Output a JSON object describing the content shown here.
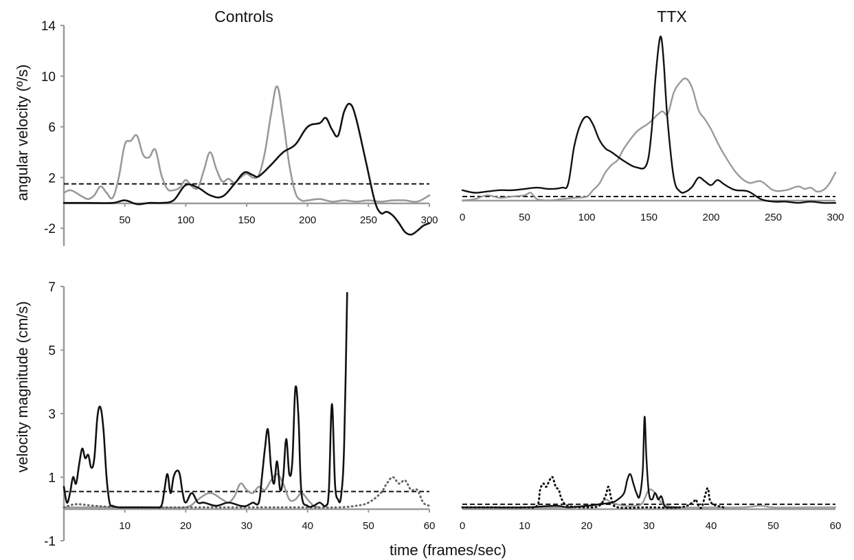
{
  "figure": {
    "titles": {
      "left": "Controls",
      "right": "TTX"
    },
    "ylabel_top": "angular velocity (º/s)",
    "ylabel_bottom": "velocity magnitude (cm/s)",
    "xlabel": "time (frames/sec)"
  },
  "colors": {
    "black": "#111111",
    "gray": "#999999",
    "dotted": "#666666",
    "axis": "#9a9a9a",
    "threshold": "#111111"
  },
  "chart_data": [
    {
      "panel": "top-left",
      "type": "line",
      "title": "Controls",
      "ylabel": "angular velocity (º/s)",
      "xlim": [
        0,
        300
      ],
      "ylim": [
        -3.4,
        14
      ],
      "xticks": [
        50,
        100,
        150,
        200,
        250,
        300
      ],
      "yticks": [
        -2,
        2,
        6,
        10,
        14
      ],
      "threshold": 1.5,
      "series": [
        {
          "color": "black",
          "style": "solid",
          "x": [
            0,
            20,
            40,
            50,
            60,
            70,
            80,
            90,
            100,
            110,
            120,
            130,
            140,
            148,
            155,
            160,
            170,
            180,
            190,
            200,
            210,
            215,
            220,
            225,
            230,
            235,
            240,
            248,
            255,
            260,
            265,
            270,
            275,
            280,
            285,
            290,
            295,
            300
          ],
          "y": [
            0,
            0,
            0,
            0.2,
            -0.1,
            0,
            0,
            0.2,
            1.4,
            1.2,
            0.6,
            0.5,
            1.5,
            2.4,
            2.2,
            2.1,
            3.0,
            4.0,
            4.6,
            6.0,
            6.3,
            6.7,
            5.8,
            5.3,
            7.2,
            7.8,
            6.6,
            3.2,
            0.2,
            -0.8,
            -0.7,
            -1.0,
            -1.6,
            -2.3,
            -2.5,
            -2.2,
            -1.8,
            -1.6
          ]
        },
        {
          "color": "gray",
          "style": "solid",
          "x": [
            0,
            5,
            10,
            15,
            20,
            25,
            30,
            35,
            40,
            45,
            50,
            55,
            60,
            65,
            70,
            75,
            80,
            85,
            90,
            95,
            100,
            105,
            110,
            115,
            120,
            125,
            130,
            135,
            140,
            145,
            150,
            155,
            160,
            165,
            170,
            175,
            180,
            185,
            190,
            195,
            200,
            210,
            220,
            230,
            240,
            250,
            260,
            270,
            280,
            290,
            300
          ],
          "y": [
            0.8,
            1.0,
            0.8,
            0.5,
            0.3,
            0.6,
            1.3,
            0.8,
            0.4,
            2.0,
            4.6,
            4.9,
            5.3,
            3.8,
            3.6,
            4.2,
            2.2,
            1.1,
            1.0,
            1.2,
            1.8,
            1.3,
            1.2,
            2.6,
            4.0,
            2.7,
            1.7,
            1.9,
            1.6,
            2.0,
            2.3,
            2.0,
            2.2,
            4.0,
            7.0,
            9.2,
            6.5,
            3.0,
            0.8,
            0.2,
            0.2,
            0.3,
            0.1,
            0.2,
            0.1,
            0.2,
            0.1,
            0.2,
            0.2,
            0.1,
            0.6
          ]
        }
      ]
    },
    {
      "panel": "top-right",
      "type": "line",
      "title": "TTX",
      "xlim": [
        0,
        300
      ],
      "ylim": [
        -3.4,
        14
      ],
      "xticks": [
        0,
        50,
        100,
        150,
        200,
        250,
        300
      ],
      "threshold": 0.5,
      "series": [
        {
          "color": "black",
          "style": "solid",
          "x": [
            0,
            10,
            20,
            30,
            40,
            50,
            60,
            70,
            80,
            85,
            90,
            95,
            100,
            105,
            110,
            115,
            120,
            130,
            140,
            148,
            152,
            155,
            158,
            160,
            162,
            165,
            170,
            175,
            180,
            185,
            190,
            195,
            200,
            205,
            210,
            215,
            220,
            230,
            240,
            250,
            260,
            270,
            280,
            290,
            300
          ],
          "y": [
            1.0,
            0.8,
            0.9,
            1.0,
            1.0,
            1.1,
            1.2,
            1.1,
            1.2,
            1.5,
            4.5,
            6.2,
            6.8,
            6.2,
            5.0,
            4.3,
            4.0,
            3.3,
            2.8,
            3.0,
            5.5,
            9.5,
            12.5,
            13.0,
            11.0,
            6.5,
            2.0,
            0.9,
            0.9,
            1.3,
            2.0,
            1.7,
            1.4,
            1.8,
            1.5,
            1.2,
            1.0,
            0.9,
            0.3,
            0.1,
            0.1,
            0.0,
            0.1,
            0.0,
            0.0
          ]
        },
        {
          "color": "gray",
          "style": "solid",
          "x": [
            0,
            10,
            20,
            30,
            40,
            50,
            55,
            60,
            70,
            80,
            90,
            100,
            105,
            110,
            115,
            120,
            125,
            130,
            140,
            150,
            160,
            165,
            170,
            175,
            180,
            185,
            190,
            195,
            200,
            205,
            210,
            220,
            230,
            240,
            250,
            260,
            270,
            275,
            280,
            285,
            290,
            295,
            300
          ],
          "y": [
            0.2,
            0.3,
            0.6,
            0.4,
            0.5,
            0.6,
            0.8,
            0.3,
            0.2,
            0.3,
            0.4,
            0.5,
            1.0,
            1.5,
            2.4,
            3.0,
            3.4,
            4.3,
            5.6,
            6.3,
            7.2,
            7.0,
            8.7,
            9.5,
            9.8,
            9.0,
            7.3,
            6.6,
            5.8,
            4.8,
            3.9,
            2.4,
            1.6,
            1.7,
            1.0,
            1.0,
            1.3,
            1.1,
            1.2,
            0.9,
            1.0,
            1.5,
            2.4
          ]
        }
      ]
    },
    {
      "panel": "bottom-left",
      "type": "line",
      "ylabel": "velocity magnitude (cm/s)",
      "xlim": [
        0,
        60
      ],
      "ylim": [
        -1,
        7
      ],
      "xticks": [
        10,
        20,
        30,
        40,
        50,
        60
      ],
      "yticks": [
        -1,
        1,
        3,
        5,
        7
      ],
      "threshold": 0.55,
      "series": [
        {
          "color": "black",
          "style": "solid",
          "x": [
            0,
            0.5,
            1,
            1.5,
            2,
            2.5,
            3,
            3.5,
            4,
            4.5,
            5,
            5.5,
            6,
            6.5,
            7,
            7.5,
            8,
            9,
            10,
            12,
            14,
            15,
            16,
            16.5,
            17,
            17.5,
            18,
            18.5,
            19,
            19.5,
            20,
            21,
            22,
            23,
            25,
            27,
            29,
            30,
            31,
            32,
            32.5,
            33,
            33.5,
            34,
            34.5,
            35,
            35.5,
            36,
            36.5,
            37,
            37.5,
            38,
            38.5,
            39,
            40,
            41,
            42,
            43,
            43.5,
            44,
            44.5,
            45,
            45.5,
            46,
            46.5
          ],
          "y": [
            0.7,
            0.2,
            0.5,
            1.0,
            0.8,
            1.4,
            1.9,
            1.6,
            1.7,
            1.3,
            1.6,
            2.9,
            3.2,
            2.5,
            1.0,
            0.2,
            0.1,
            0.05,
            0.05,
            0.05,
            0.05,
            0.05,
            0.1,
            0.6,
            1.1,
            0.5,
            1.0,
            1.2,
            1.1,
            0.5,
            0.2,
            0.5,
            0.2,
            0.2,
            0.1,
            0.2,
            0.1,
            0.1,
            0.2,
            0.2,
            1.0,
            1.9,
            2.5,
            1.3,
            0.8,
            1.5,
            0.6,
            1.0,
            2.2,
            1.1,
            1.5,
            3.8,
            2.9,
            0.5,
            0.1,
            0.1,
            0.2,
            0.1,
            0.6,
            3.3,
            0.8,
            0.3,
            0.4,
            2.0,
            6.8
          ]
        },
        {
          "color": "gray",
          "style": "solid",
          "x": [
            0,
            5,
            10,
            15,
            20,
            22,
            24,
            26,
            27,
            28,
            29,
            30,
            31,
            32,
            33,
            34,
            35,
            36,
            37,
            38,
            39,
            40,
            41,
            42
          ],
          "y": [
            0.05,
            0.05,
            0.05,
            0.05,
            0.05,
            0.3,
            0.5,
            0.3,
            0.2,
            0.4,
            0.8,
            0.6,
            0.5,
            0.7,
            0.6,
            0.9,
            1.1,
            0.8,
            0.3,
            0.3,
            0.5,
            0.3,
            0.1,
            0.05
          ]
        },
        {
          "color": "dotted",
          "style": "dotted",
          "x": [
            0,
            2,
            5,
            10,
            20,
            30,
            40,
            45,
            48,
            50,
            52,
            53,
            54,
            55,
            56,
            57,
            58,
            59,
            60
          ],
          "y": [
            0.05,
            0.15,
            0.1,
            0.05,
            0.05,
            0.05,
            0.05,
            0.05,
            0.1,
            0.2,
            0.5,
            0.8,
            1.0,
            0.8,
            0.9,
            0.6,
            0.6,
            0.2,
            0.1
          ]
        }
      ]
    },
    {
      "panel": "bottom-right",
      "type": "line",
      "xlim": [
        0,
        60
      ],
      "ylim": [
        -1,
        7
      ],
      "xticks": [
        0,
        10,
        20,
        30,
        40,
        50,
        60
      ],
      "threshold": 0.15,
      "series": [
        {
          "color": "black",
          "style": "solid",
          "x": [
            0,
            5,
            10,
            15,
            17,
            20,
            22,
            24,
            25,
            26,
            26.5,
            27,
            27.5,
            28,
            28.5,
            29,
            29.3,
            29.6,
            30,
            30.5,
            31,
            31.5,
            32,
            32.5,
            33,
            34,
            35
          ],
          "y": [
            0.05,
            0.05,
            0.05,
            0.1,
            0.05,
            0.1,
            0.15,
            0.2,
            0.3,
            0.5,
            0.9,
            1.1,
            0.8,
            0.5,
            0.4,
            1.2,
            2.9,
            1.6,
            0.5,
            0.3,
            0.5,
            0.3,
            0.4,
            0.1,
            0.05,
            0.05,
            0.05
          ]
        },
        {
          "color": "gray",
          "style": "solid",
          "x": [
            0,
            5,
            10,
            15,
            20,
            22,
            23,
            24,
            26,
            28,
            29,
            30,
            31,
            32,
            33,
            35,
            40,
            45,
            48,
            50,
            55,
            60
          ],
          "y": [
            0.05,
            0.05,
            0.05,
            0.05,
            0.1,
            0.15,
            0.3,
            0.2,
            0.1,
            0.1,
            0.2,
            0.6,
            0.5,
            0.2,
            0.1,
            0.05,
            0.05,
            0.05,
            0.1,
            0.05,
            0.05,
            0.05
          ]
        },
        {
          "color": "black",
          "style": "dotted",
          "x": [
            0,
            5,
            10,
            12,
            12.5,
            13,
            13.5,
            14,
            14.5,
            15,
            15.5,
            16,
            17,
            20,
            22,
            23,
            23.5,
            24,
            25,
            30,
            35,
            37,
            37.5,
            38,
            38.5,
            39,
            39.5,
            40,
            42
          ],
          "y": [
            0.05,
            0.05,
            0.05,
            0.1,
            0.6,
            0.8,
            0.7,
            0.9,
            1.0,
            0.7,
            0.6,
            0.3,
            0.1,
            0.05,
            0.1,
            0.4,
            0.7,
            0.3,
            0.05,
            0.05,
            0.05,
            0.2,
            0.3,
            0.1,
            0.05,
            0.4,
            0.65,
            0.2,
            0.05
          ]
        }
      ]
    }
  ]
}
